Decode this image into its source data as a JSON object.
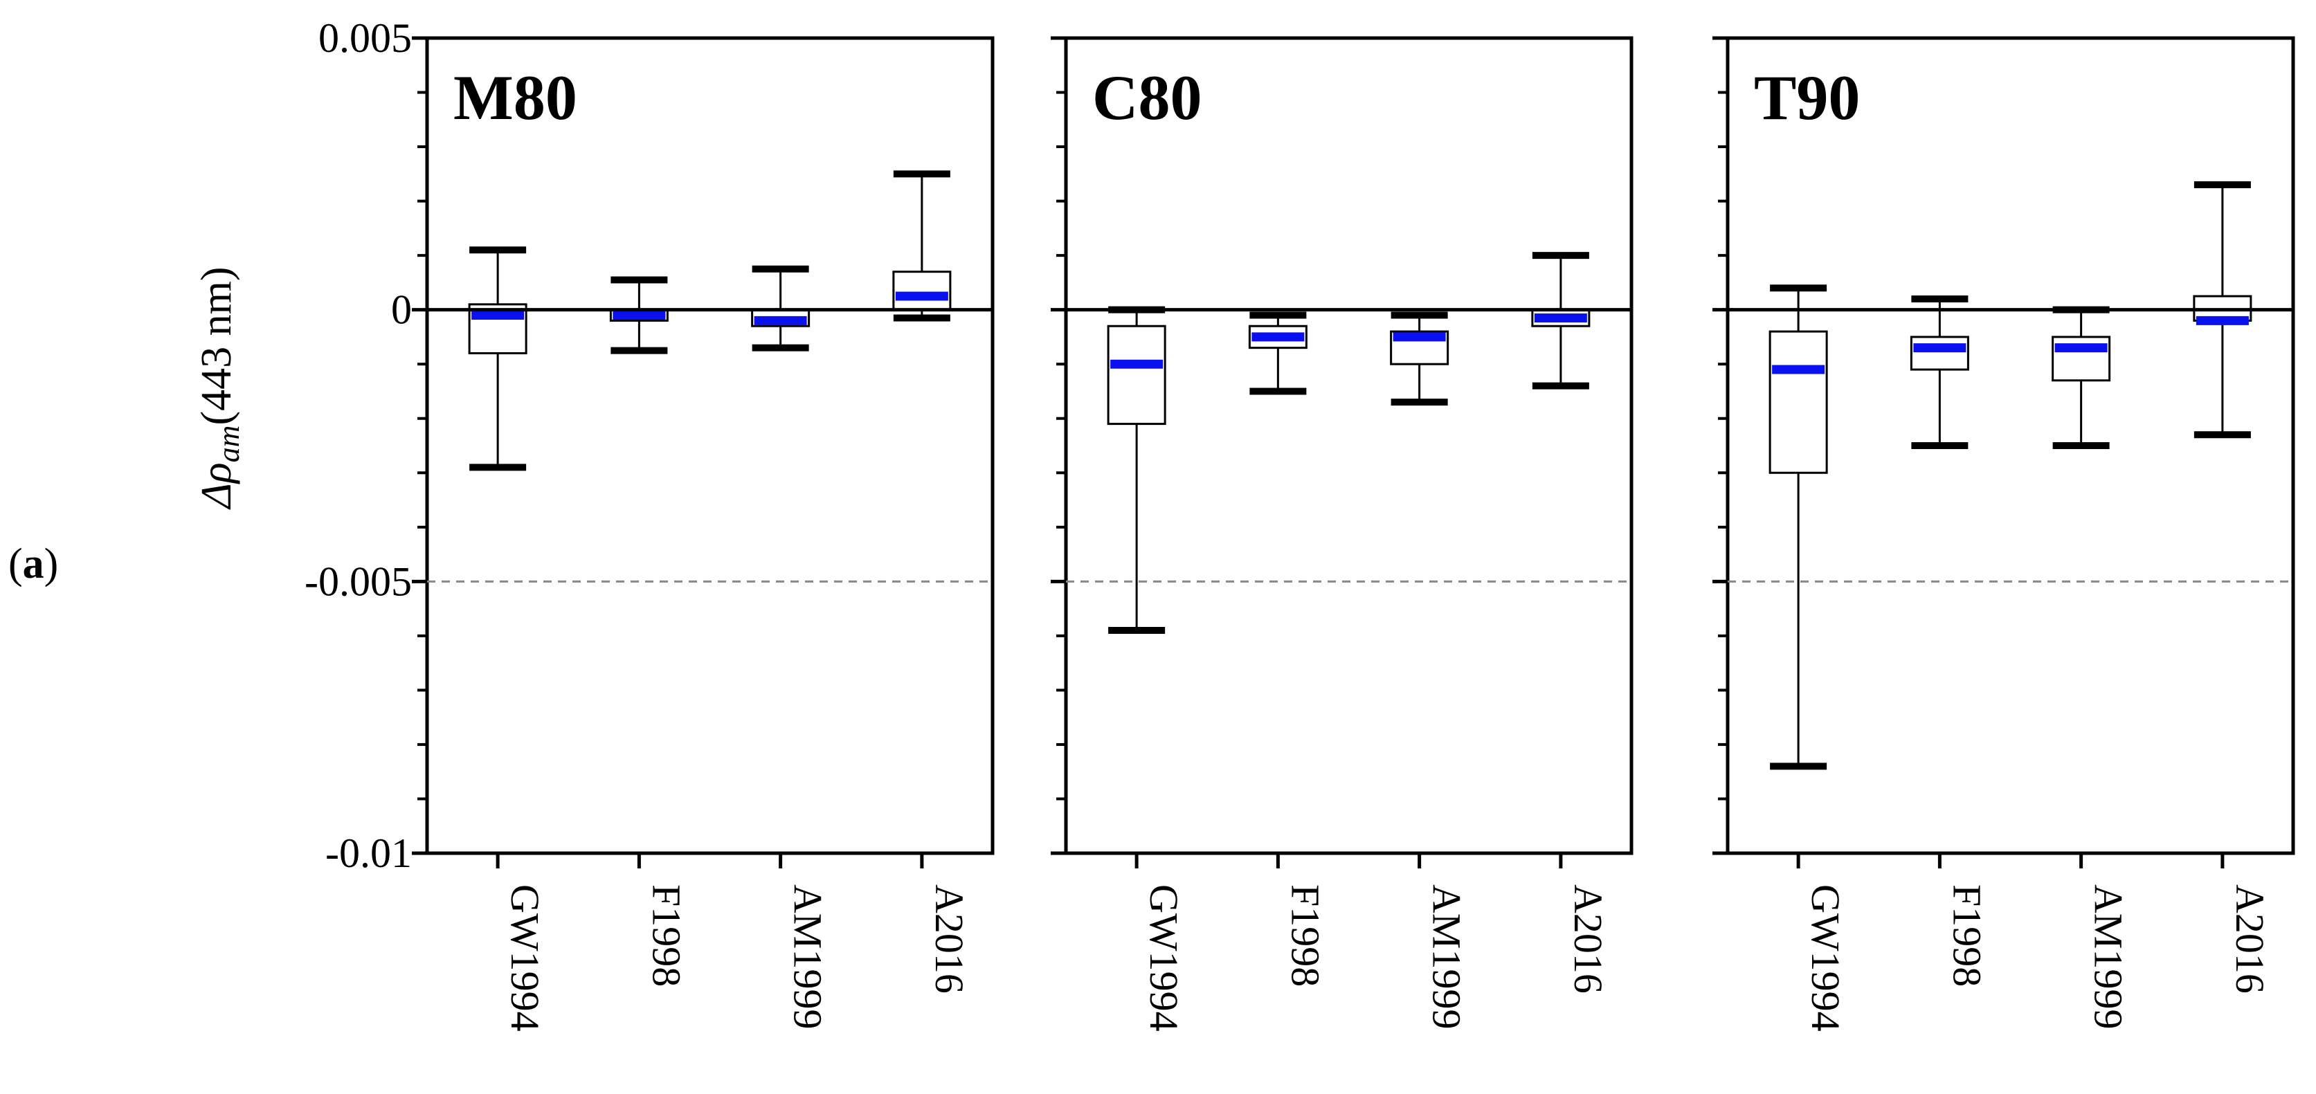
{
  "figure_label": {
    "open": "(",
    "letter": "a",
    "close": ")"
  },
  "ylabel": {
    "delta": "Δ",
    "rho": "ρ",
    "sub": "am",
    "unit": "(443 nm)"
  },
  "chart_data": {
    "type": "box",
    "ylim": [
      -0.01,
      0.005
    ],
    "yticks": [
      0.005,
      0,
      -0.005,
      -0.01
    ],
    "ytick_labels": [
      "0.005",
      "0",
      "-0.005",
      "-0.01"
    ],
    "reference_line": 0,
    "dashed_line": -0.005,
    "categories": [
      "GW1994",
      "F1998",
      "AM1999",
      "A2016"
    ],
    "panels": [
      {
        "title": "M80",
        "boxes": [
          {
            "category": "GW1994",
            "whisker_low": -0.0029,
            "q1": -0.0008,
            "median": -0.0001,
            "q3": 0.0001,
            "whisker_high": 0.0011
          },
          {
            "category": "F1998",
            "whisker_low": -0.00075,
            "q1": -0.0002,
            "median": -0.0001,
            "q3": 0.0,
            "whisker_high": 0.00055
          },
          {
            "category": "AM1999",
            "whisker_low": -0.0007,
            "q1": -0.0003,
            "median": -0.0002,
            "q3": 0.0,
            "whisker_high": 0.00075
          },
          {
            "category": "A2016",
            "whisker_low": -0.00015,
            "q1": 0.0,
            "median": 0.00025,
            "q3": 0.0007,
            "whisker_high": 0.0025
          }
        ]
      },
      {
        "title": "C80",
        "boxes": [
          {
            "category": "GW1994",
            "whisker_low": -0.0059,
            "q1": -0.0021,
            "median": -0.001,
            "q3": -0.0003,
            "whisker_high": 0.0
          },
          {
            "category": "F1998",
            "whisker_low": -0.0015,
            "q1": -0.0007,
            "median": -0.0005,
            "q3": -0.0003,
            "whisker_high": -0.0001
          },
          {
            "category": "AM1999",
            "whisker_low": -0.0017,
            "q1": -0.001,
            "median": -0.0005,
            "q3": -0.0004,
            "whisker_high": -0.0001
          },
          {
            "category": "A2016",
            "whisker_low": -0.0014,
            "q1": -0.0003,
            "median": -0.00015,
            "q3": 0.0,
            "whisker_high": 0.001
          }
        ]
      },
      {
        "title": "T90",
        "boxes": [
          {
            "category": "GW1994",
            "whisker_low": -0.0084,
            "q1": -0.003,
            "median": -0.0011,
            "q3": -0.0004,
            "whisker_high": 0.0004
          },
          {
            "category": "F1998",
            "whisker_low": -0.0025,
            "q1": -0.0011,
            "median": -0.0007,
            "q3": -0.0005,
            "whisker_high": 0.0002
          },
          {
            "category": "AM1999",
            "whisker_low": -0.0025,
            "q1": -0.0013,
            "median": -0.0007,
            "q3": -0.0005,
            "whisker_high": 0.0
          },
          {
            "category": "A2016",
            "whisker_low": -0.0023,
            "q1": -0.0002,
            "median": -0.0002,
            "q3": 0.00025,
            "whisker_high": 0.0023
          }
        ]
      }
    ]
  },
  "colors": {
    "median": "#0a10f0",
    "axis": "#000000",
    "box_stroke": "#000000",
    "dashed": "#888888",
    "background": "#ffffff"
  }
}
